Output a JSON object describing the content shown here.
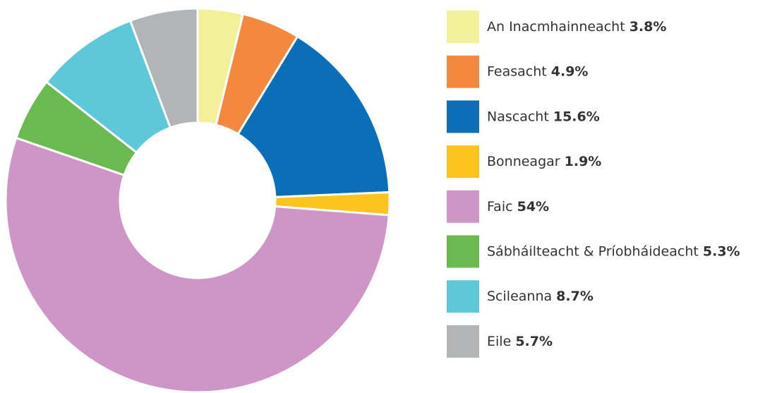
{
  "chart_data": {
    "type": "pie",
    "categories": [
      "An Inacmhainneacht",
      "Feasacht",
      "Nascacht",
      "Bonneagar",
      "Faic",
      "Sábháilteacht & Príobháideacht",
      "Scileanna",
      "Eile"
    ],
    "values": [
      3.8,
      4.9,
      15.6,
      1.9,
      54,
      5.3,
      8.7,
      5.7
    ],
    "value_labels": [
      "3.8%",
      "4.9%",
      "15.6%",
      "1.9%",
      "54%",
      "5.3%",
      "8.7%",
      "5.7%"
    ],
    "colors": [
      "#f3f09a",
      "#f5883f",
      "#0b6fb8",
      "#fdc41f",
      "#ce96c6",
      "#6bb951",
      "#5ec8d8",
      "#b1b5b5"
    ]
  }
}
